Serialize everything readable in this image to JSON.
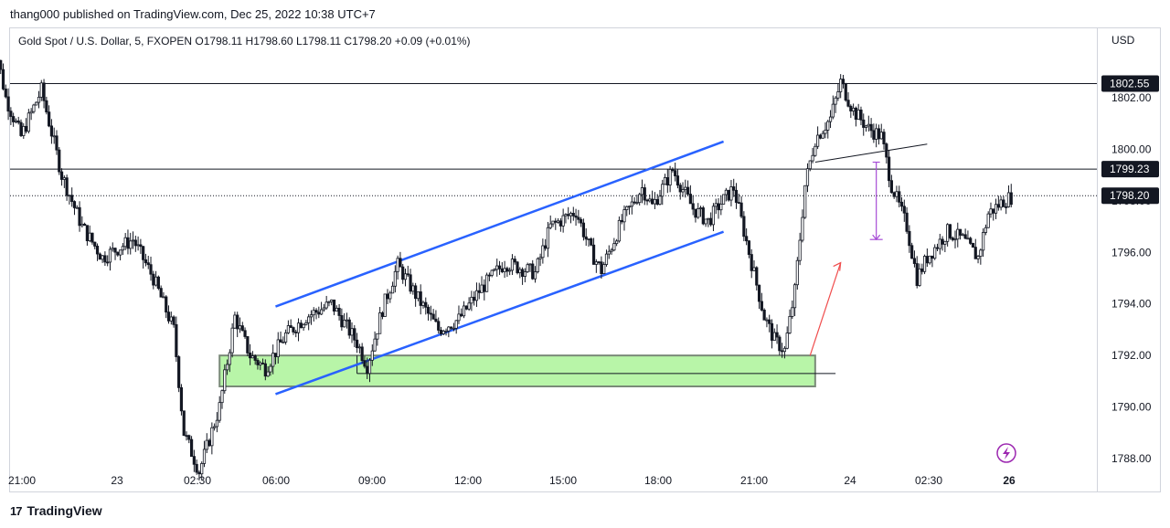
{
  "header": {
    "publisher_line": "thang000 published on TradingView.com, Dec 25, 2022 10:38 UTC+7",
    "symbol_line": "Gold Spot / U.S. Dollar, 5, FXOPEN  O1798.11  H1798.60  L1798.11  C1798.20  +0.09 (+0.01%)"
  },
  "currency": "USD",
  "footer": {
    "brand": "TradingView",
    "logo": "17"
  },
  "icons": {
    "flash": "lightning-circle-icon"
  },
  "colors": {
    "candle": "#131722",
    "channel": "#2962ff",
    "zone_fill": "#b8f5a8",
    "zone_border": "#7a8a78",
    "arrow": "#f04d4d",
    "measure": "#a64dd6",
    "price_label_bg": "#131722"
  },
  "chart_data": {
    "type": "candlestick",
    "y_axis": {
      "ticks": [
        1802.0,
        1800.0,
        1798.0,
        1796.0,
        1794.0,
        1792.0,
        1790.0,
        1788.0
      ],
      "range": [
        1787.3,
        1804.8
      ]
    },
    "x_axis": {
      "ticks": [
        "21:00",
        "23",
        "02:30",
        "06:00",
        "09:00",
        "12:00",
        "15:00",
        "18:00",
        "21:00",
        "24",
        "02:30",
        "26"
      ],
      "bold": [
        "26"
      ]
    },
    "horizontal_lines": [
      {
        "price": 1802.55,
        "label": "1802.55"
      },
      {
        "price": 1799.23,
        "label": "1799.23"
      }
    ],
    "last_price": {
      "price": 1798.2,
      "label": "1798.20"
    },
    "support_zone": {
      "top": 1792.0,
      "bottom": 1790.8
    },
    "channel": {
      "upper": [
        {
          "x": "05:20",
          "y": 1793.9
        },
        {
          "x": "20:00",
          "y": 1800.3
        }
      ],
      "lower": [
        {
          "x": "05:20",
          "y": 1790.5
        },
        {
          "x": "20:00",
          "y": 1796.8
        }
      ]
    },
    "path": [
      [
        "20:00",
        1805.0
      ],
      [
        "20:30",
        1802.0
      ],
      [
        "21:00",
        1800.5
      ],
      [
        "21:40",
        1802.3
      ],
      [
        "22:20",
        1799.0
      ],
      [
        "23:00",
        1797.0
      ],
      [
        "23:40",
        1795.8
      ],
      [
        "00:40",
        1796.5
      ],
      [
        "01:20",
        1795.0
      ],
      [
        "02:00",
        1793.0
      ],
      [
        "02:20",
        1789.0
      ],
      [
        "02:50",
        1787.5
      ],
      [
        "03:30",
        1790.0
      ],
      [
        "04:00",
        1793.5
      ],
      [
        "04:30",
        1792.0
      ],
      [
        "05:00",
        1791.5
      ],
      [
        "05:40",
        1792.8
      ],
      [
        "06:20",
        1793.5
      ],
      [
        "07:10",
        1794.0
      ],
      [
        "08:00",
        1792.5
      ],
      [
        "08:20",
        1791.6
      ],
      [
        "08:50",
        1793.8
      ],
      [
        "09:20",
        1795.5
      ],
      [
        "10:00",
        1794.2
      ],
      [
        "10:40",
        1793.0
      ],
      [
        "11:20",
        1793.4
      ],
      [
        "12:00",
        1794.5
      ],
      [
        "12:50",
        1795.6
      ],
      [
        "13:50",
        1795.2
      ],
      [
        "14:20",
        1797.0
      ],
      [
        "15:10",
        1797.6
      ],
      [
        "15:40",
        1796.0
      ],
      [
        "16:00",
        1795.3
      ],
      [
        "16:40",
        1797.2
      ],
      [
        "17:20",
        1798.5
      ],
      [
        "17:40",
        1797.8
      ],
      [
        "18:20",
        1799.2
      ],
      [
        "19:00",
        1797.7
      ],
      [
        "19:30",
        1797.2
      ],
      [
        "19:50",
        1797.8
      ],
      [
        "20:20",
        1798.5
      ],
      [
        "20:50",
        1796.0
      ],
      [
        "21:20",
        1793.5
      ],
      [
        "21:40",
        1792.6
      ],
      [
        "22:00",
        1792.2
      ],
      [
        "22:20",
        1794.5
      ],
      [
        "22:40",
        1798.6
      ],
      [
        "23:00",
        1800.4
      ],
      [
        "23:30",
        1801.2
      ],
      [
        "23:50",
        1802.6
      ],
      [
        "00:15",
        1801.5
      ],
      [
        "00:45",
        1800.8
      ],
      [
        "01:10",
        1800.5
      ],
      [
        "01:30",
        1798.6
      ],
      [
        "02:00",
        1797.0
      ],
      [
        "02:20",
        1795.0
      ],
      [
        "02:40",
        1795.8
      ],
      [
        "03:20",
        1796.8
      ],
      [
        "03:50",
        1796.5
      ],
      [
        "04:20",
        1795.8
      ],
      [
        "04:40",
        1797.5
      ],
      [
        "05:10",
        1798.0
      ],
      [
        "05:30",
        1798.2
      ]
    ]
  }
}
